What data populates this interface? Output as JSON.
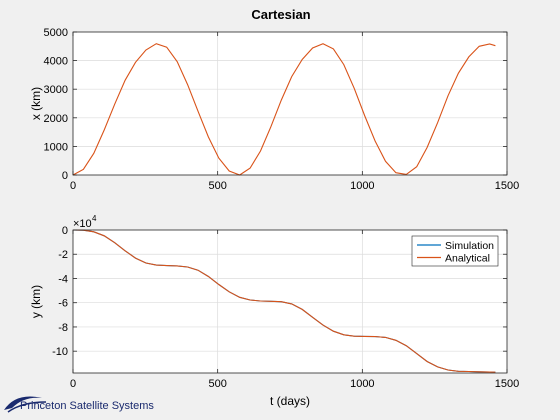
{
  "figure_title": "Cartesian",
  "logo_text": "Princeton Satellite Systems",
  "colors": {
    "simulation": "#0072bd",
    "analytical": "#d95319",
    "axis": "#262626",
    "grid": "#dcdcdc",
    "background": "#f0f0f0",
    "plot_bg": "#ffffff"
  },
  "chart_data": [
    {
      "type": "line",
      "title": "Cartesian",
      "xlabel": "",
      "ylabel": "x (km)",
      "xlim": [
        0,
        1500
      ],
      "ylim": [
        0,
        5000
      ],
      "xticks": [
        0,
        500,
        1000,
        1500
      ],
      "yticks": [
        0,
        1000,
        2000,
        3000,
        4000,
        5000
      ],
      "xtick_labels": [
        "0",
        "500",
        "1000",
        "1500"
      ],
      "ytick_labels": [
        "0",
        "1000",
        "2000",
        "3000",
        "4000",
        "5000"
      ],
      "grid": true,
      "series": [
        {
          "color": "#d95319",
          "x": [
            0,
            36,
            72,
            108,
            144,
            180,
            216,
            252,
            288,
            324,
            360,
            396,
            432,
            468,
            504,
            540,
            576,
            612,
            648,
            684,
            720,
            756,
            792,
            828,
            864,
            900,
            936,
            972,
            1008,
            1044,
            1080,
            1116,
            1152,
            1188,
            1224,
            1260,
            1296,
            1332,
            1368,
            1404,
            1440,
            1460
          ],
          "y": [
            0,
            198,
            760,
            1573,
            2475,
            3310,
            3940,
            4370,
            4590,
            4470,
            3960,
            3160,
            2230,
            1330,
            590,
            140,
            0,
            240,
            840,
            1690,
            2620,
            3440,
            4040,
            4440,
            4590,
            4410,
            3860,
            3030,
            2080,
            1190,
            480,
            80,
            20,
            290,
            960,
            1830,
            2770,
            3560,
            4130,
            4500,
            4580,
            4520
          ]
        }
      ]
    },
    {
      "type": "line",
      "title": "",
      "xlabel": "t (days)",
      "ylabel": "y (km)",
      "exponent_label": "×10",
      "exponent_power": "4",
      "xlim": [
        0,
        1500
      ],
      "ylim": [
        -11.8,
        0
      ],
      "xticks": [
        0,
        500,
        1000,
        1500
      ],
      "yticks": [
        0,
        -2,
        -4,
        -6,
        -8,
        -10
      ],
      "xtick_labels": [
        "0",
        "500",
        "1000",
        "1500"
      ],
      "ytick_labels": [
        "0",
        "-2",
        "-4",
        "-6",
        "-8",
        "-10"
      ],
      "grid": true,
      "legend_position": "top-right",
      "series": [
        {
          "name": "Simulation",
          "color": "#0072bd",
          "x": [
            0,
            36,
            72,
            108,
            144,
            180,
            216,
            252,
            288,
            324,
            360,
            396,
            432,
            468,
            504,
            540,
            576,
            612,
            648,
            684,
            720,
            756,
            792,
            828,
            864,
            900,
            936,
            972,
            1008,
            1044,
            1080,
            1116,
            1152,
            1188,
            1224,
            1260,
            1296,
            1332,
            1368,
            1404,
            1440,
            1460
          ],
          "y": [
            0,
            -0.02,
            -0.15,
            -0.48,
            -1.05,
            -1.72,
            -2.32,
            -2.72,
            -2.9,
            -2.94,
            -2.96,
            -3.05,
            -3.32,
            -3.84,
            -4.5,
            -5.1,
            -5.55,
            -5.78,
            -5.86,
            -5.88,
            -5.92,
            -6.1,
            -6.55,
            -7.2,
            -7.85,
            -8.35,
            -8.65,
            -8.76,
            -8.78,
            -8.8,
            -8.86,
            -9.1,
            -9.55,
            -10.2,
            -10.85,
            -11.3,
            -11.55,
            -11.66,
            -11.68,
            -11.7,
            -11.72,
            -11.73
          ]
        },
        {
          "name": "Analytical",
          "color": "#d95319",
          "x": [
            0,
            36,
            72,
            108,
            144,
            180,
            216,
            252,
            288,
            324,
            360,
            396,
            432,
            468,
            504,
            540,
            576,
            612,
            648,
            684,
            720,
            756,
            792,
            828,
            864,
            900,
            936,
            972,
            1008,
            1044,
            1080,
            1116,
            1152,
            1188,
            1224,
            1260,
            1296,
            1332,
            1368,
            1404,
            1440,
            1460
          ],
          "y": [
            0,
            -0.02,
            -0.15,
            -0.48,
            -1.05,
            -1.72,
            -2.32,
            -2.72,
            -2.9,
            -2.94,
            -2.96,
            -3.05,
            -3.32,
            -3.84,
            -4.5,
            -5.1,
            -5.55,
            -5.78,
            -5.86,
            -5.88,
            -5.92,
            -6.1,
            -6.55,
            -7.2,
            -7.85,
            -8.35,
            -8.65,
            -8.76,
            -8.78,
            -8.8,
            -8.86,
            -9.1,
            -9.55,
            -10.2,
            -10.85,
            -11.3,
            -11.55,
            -11.66,
            -11.68,
            -11.7,
            -11.72,
            -11.73
          ]
        }
      ]
    }
  ]
}
